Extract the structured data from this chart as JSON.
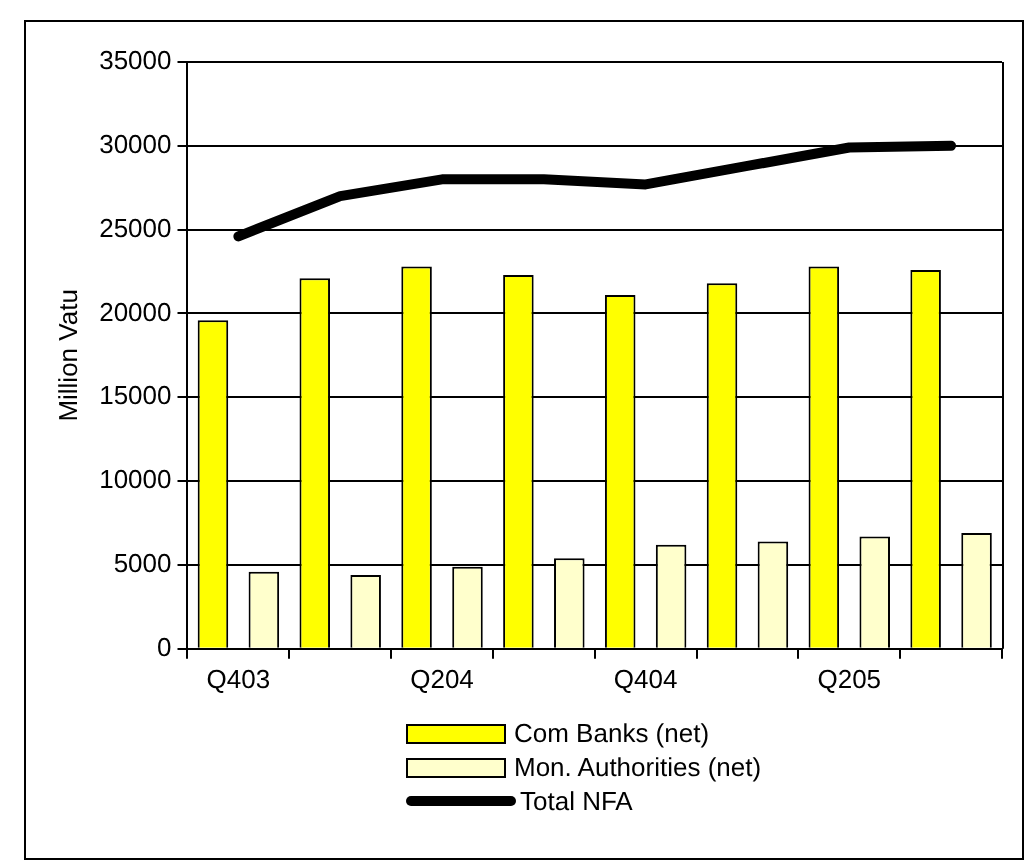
{
  "chart_data": {
    "type": "bar",
    "ylabel": "Million Vatu",
    "categories": [
      "Q403",
      null,
      "Q204",
      null,
      "Q404",
      null,
      "Q205",
      null
    ],
    "series": [
      {
        "name": "Com Banks (net)",
        "color": "#ffff00",
        "values": [
          19600,
          22100,
          22800,
          22300,
          21100,
          21800,
          22800,
          22600
        ]
      },
      {
        "name": "Mon. Authorities (net)",
        "color": "#ffffcc",
        "values": [
          4600,
          4400,
          4900,
          5400,
          6200,
          6400,
          6700,
          6900
        ]
      },
      {
        "name": "Total NFA",
        "type": "line",
        "color": "#000000",
        "values": [
          24600,
          27000,
          28000,
          28000,
          27700,
          28800,
          29900,
          30000
        ]
      }
    ],
    "ylim": [
      0,
      35000
    ],
    "yticks": [
      0,
      5000,
      10000,
      15000,
      20000,
      25000,
      30000,
      35000
    ],
    "grid": "y",
    "legend": "bottom",
    "marker": "none"
  }
}
